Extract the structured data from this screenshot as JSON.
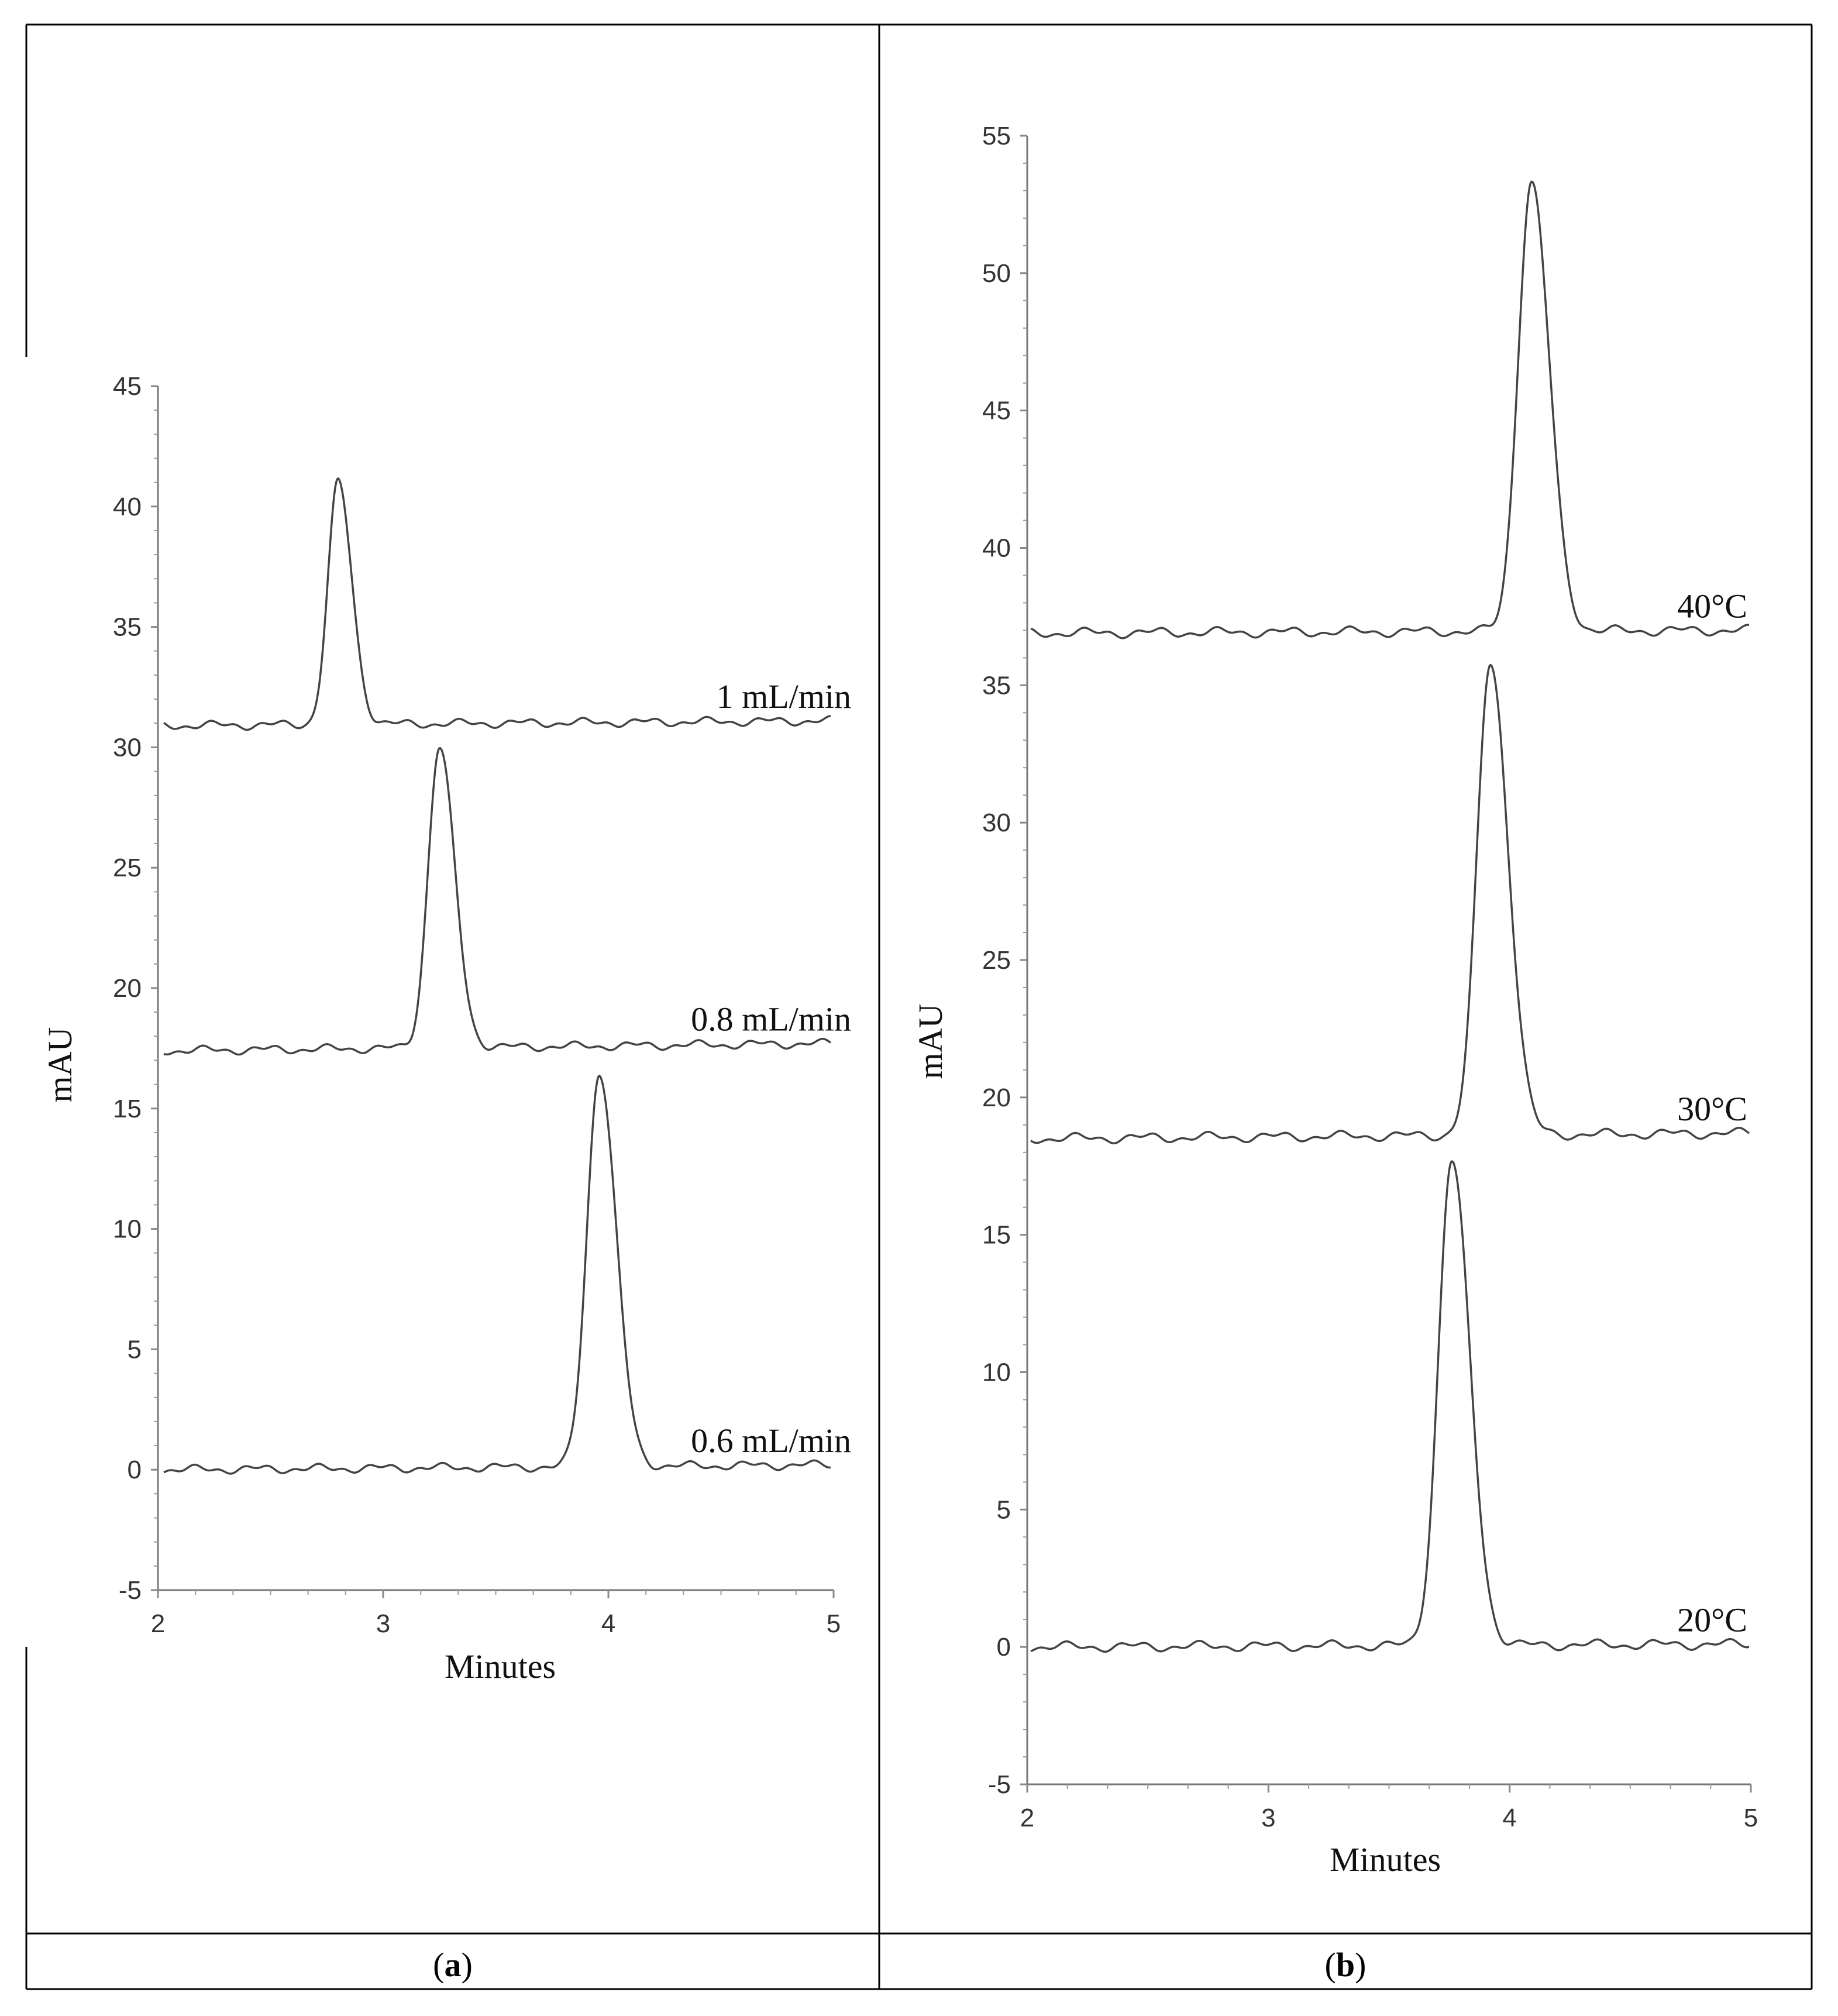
{
  "chart_data": [
    {
      "type": "line",
      "panel_label": "(a)",
      "panel_letter": "a",
      "xlabel": "Minutes",
      "ylabel": "mAU",
      "xlim": [
        2,
        5
      ],
      "ylim": [
        -5,
        45
      ],
      "xticks": [
        2,
        3,
        4,
        5
      ],
      "yticks": [
        -5,
        0,
        5,
        10,
        15,
        20,
        25,
        30,
        35,
        40,
        45
      ],
      "grid": false,
      "series": [
        {
          "name": "1 mL/min",
          "baseline_start": 30.9,
          "baseline_end": 31.1,
          "peak_x": 2.8,
          "peak_y": 41.0,
          "peak_width": 0.045
        },
        {
          "name": "0.8 mL/min",
          "baseline_start": 17.4,
          "baseline_end": 17.7,
          "peak_x": 3.25,
          "peak_y": 30.0,
          "peak_width": 0.05
        },
        {
          "name": "0.6 mL/min",
          "baseline_start": 0.0,
          "baseline_end": 0.2,
          "peak_x": 3.96,
          "peak_y": 16.5,
          "peak_width": 0.055
        }
      ]
    },
    {
      "type": "line",
      "panel_label": "(b)",
      "panel_letter": "b",
      "xlabel": "Minutes",
      "ylabel": "mAU",
      "xlim": [
        2,
        5
      ],
      "ylim": [
        -5,
        55
      ],
      "xticks": [
        2,
        3,
        4,
        5
      ],
      "yticks": [
        -5,
        0,
        5,
        10,
        15,
        20,
        25,
        30,
        35,
        40,
        45,
        50,
        55
      ],
      "grid": false,
      "series": [
        {
          "name": "40°C",
          "baseline_start": 36.9,
          "baseline_end": 37.0,
          "peak_x": 4.09,
          "peak_y": 53.3,
          "peak_width": 0.055
        },
        {
          "name": "30°C",
          "baseline_start": 18.5,
          "baseline_end": 18.7,
          "peak_x": 3.92,
          "peak_y": 35.8,
          "peak_width": 0.055
        },
        {
          "name": "20°C",
          "baseline_start": 0.0,
          "baseline_end": 0.1,
          "peak_x": 3.76,
          "peak_y": 17.7,
          "peak_width": 0.055
        }
      ]
    }
  ]
}
